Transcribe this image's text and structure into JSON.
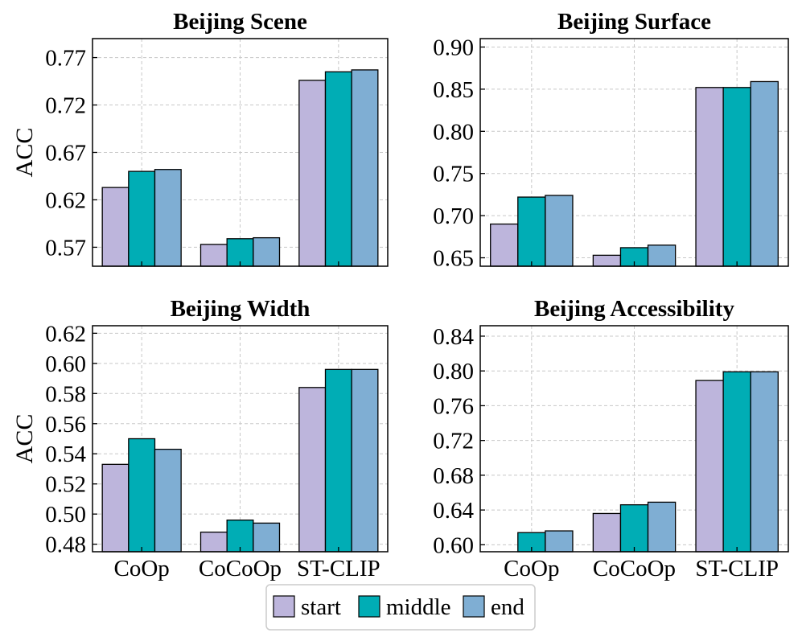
{
  "chart_data": [
    {
      "type": "bar",
      "title": "Beijing Scene",
      "ylabel": "ACC",
      "xlabel": "",
      "categories": [
        "CoOp",
        "CoCoOp",
        "ST-CLIP"
      ],
      "show_xticklabels": false,
      "series": [
        {
          "name": "start",
          "values": [
            0.633,
            0.573,
            0.746
          ]
        },
        {
          "name": "middle",
          "values": [
            0.65,
            0.579,
            0.755
          ]
        },
        {
          "name": "end",
          "values": [
            0.652,
            0.58,
            0.757
          ]
        }
      ],
      "ylim": [
        0.55,
        0.79
      ],
      "yticks": [
        0.57,
        0.62,
        0.67,
        0.72,
        0.77
      ],
      "ytick_labels": [
        "0.57",
        "0.62",
        "0.67",
        "0.72",
        "0.77"
      ],
      "grid": true
    },
    {
      "type": "bar",
      "title": "Beijing Surface",
      "ylabel": "",
      "xlabel": "",
      "categories": [
        "CoOp",
        "CoCoOp",
        "ST-CLIP"
      ],
      "show_xticklabels": false,
      "series": [
        {
          "name": "start",
          "values": [
            0.69,
            0.653,
            0.852
          ]
        },
        {
          "name": "middle",
          "values": [
            0.722,
            0.662,
            0.852
          ]
        },
        {
          "name": "end",
          "values": [
            0.724,
            0.665,
            0.859
          ]
        }
      ],
      "ylim": [
        0.64,
        0.91
      ],
      "yticks": [
        0.65,
        0.7,
        0.75,
        0.8,
        0.85,
        0.9
      ],
      "ytick_labels": [
        "0.65",
        "0.70",
        "0.75",
        "0.80",
        "0.85",
        "0.90"
      ],
      "grid": true
    },
    {
      "type": "bar",
      "title": "Beijing Width",
      "ylabel": "ACC",
      "xlabel": "",
      "categories": [
        "CoOp",
        "CoCoOp",
        "ST-CLIP"
      ],
      "show_xticklabels": true,
      "series": [
        {
          "name": "start",
          "values": [
            0.533,
            0.488,
            0.584
          ]
        },
        {
          "name": "middle",
          "values": [
            0.55,
            0.496,
            0.596
          ]
        },
        {
          "name": "end",
          "values": [
            0.543,
            0.494,
            0.596
          ]
        }
      ],
      "ylim": [
        0.475,
        0.625
      ],
      "yticks": [
        0.48,
        0.5,
        0.52,
        0.54,
        0.56,
        0.58,
        0.6,
        0.62
      ],
      "ytick_labels": [
        "0.48",
        "0.50",
        "0.52",
        "0.54",
        "0.56",
        "0.58",
        "0.60",
        "0.62"
      ],
      "grid": true
    },
    {
      "type": "bar",
      "title": "Beijing Accessibility",
      "ylabel": "",
      "xlabel": "",
      "categories": [
        "CoOp",
        "CoCoOp",
        "ST-CLIP"
      ],
      "show_xticklabels": true,
      "series": [
        {
          "name": "start",
          "values": [
            0.592,
            0.636,
            0.789
          ]
        },
        {
          "name": "middle",
          "values": [
            0.614,
            0.646,
            0.799
          ]
        },
        {
          "name": "end",
          "values": [
            0.616,
            0.649,
            0.799
          ]
        }
      ],
      "ylim": [
        0.592,
        0.852
      ],
      "yticks": [
        0.6,
        0.64,
        0.68,
        0.72,
        0.76,
        0.8,
        0.84
      ],
      "ytick_labels": [
        "0.60",
        "0.64",
        "0.68",
        "0.72",
        "0.76",
        "0.80",
        "0.84"
      ],
      "grid": true
    }
  ],
  "legend": {
    "position": "bottom-center",
    "entries": [
      {
        "name": "start",
        "color": "#bdb5dc"
      },
      {
        "name": "middle",
        "color": "#00adb5"
      },
      {
        "name": "end",
        "color": "#7faed3"
      }
    ]
  },
  "colors": {
    "start": "#bdb5dc",
    "middle": "#00adb5",
    "end": "#7faed3",
    "grid": "#c8c8c8",
    "edge": "#000000"
  }
}
